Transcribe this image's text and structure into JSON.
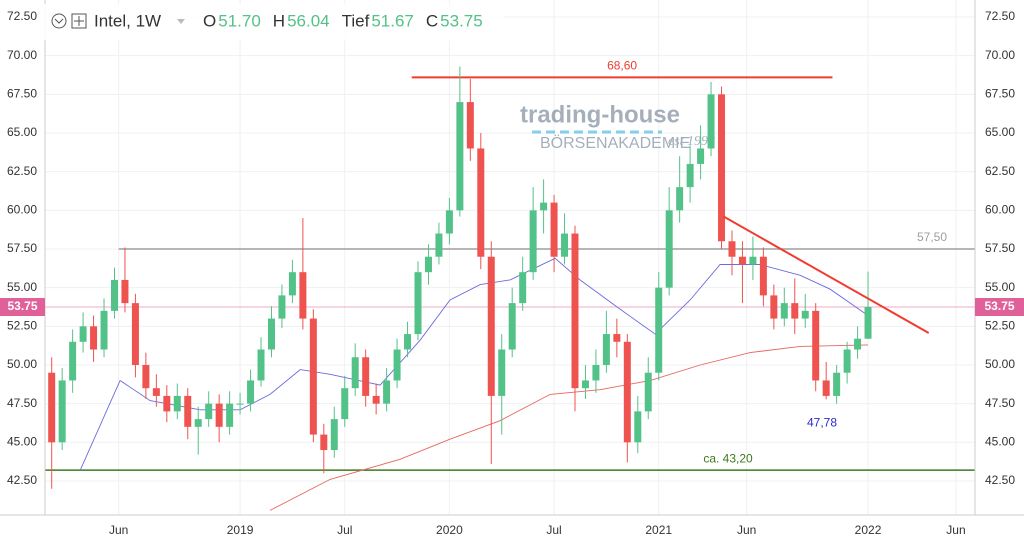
{
  "chart_data": {
    "type": "candlestick",
    "header": {
      "symbol": "Intel, 1W",
      "ohlc": [
        {
          "key": "O",
          "value": "51.70"
        },
        {
          "key": "H",
          "value": "56.04"
        },
        {
          "key": "Tief",
          "value": "51.67"
        },
        {
          "key": "C",
          "value": "53.75"
        }
      ]
    },
    "watermark": {
      "name": "trading-house",
      "sub": "BÖRSENAKADEMIE",
      "est": "est 1998"
    },
    "xlim": [
      2018.068,
      2022.511
    ],
    "xticks": [
      {
        "value": 2018.42,
        "label": "Jun"
      },
      2019,
      {
        "value": 2019.5,
        "label": "Jul"
      },
      2020,
      {
        "value": 2020.5,
        "label": "Jul"
      },
      2021,
      {
        "value": 2021.42,
        "label": "Jun"
      },
      2022,
      {
        "value": 2022.42,
        "label": "Jun"
      }
    ],
    "ylim": [
      40.3,
      73.6
    ],
    "yticks": [
      {
        "value": 42.5,
        "label": "42.50"
      },
      {
        "value": 45,
        "label": "45.00"
      },
      {
        "value": 47.5,
        "label": "47.50"
      },
      {
        "value": 50,
        "label": "50.00"
      },
      {
        "value": 52.5,
        "label": "52.50"
      },
      {
        "value": 55,
        "label": "55.00"
      },
      {
        "value": 57.5,
        "label": "57.50"
      },
      {
        "value": 60,
        "label": "60.00"
      },
      {
        "value": 62.5,
        "label": "62.50"
      },
      {
        "value": 65,
        "label": "65.00"
      },
      {
        "value": 67.5,
        "label": "67.50"
      },
      {
        "value": 70,
        "label": "70.00"
      },
      {
        "value": 72.5,
        "label": "72.50"
      }
    ],
    "grid": true,
    "up_color": "#53c288",
    "down_color": "#ef5350",
    "x": [
      2018.1,
      2018.15,
      2018.2,
      2018.25,
      2018.3,
      2018.35,
      2018.4,
      2018.45,
      2018.5,
      2018.55,
      2018.6,
      2018.65,
      2018.7,
      2018.75,
      2018.8,
      2018.85,
      2018.9,
      2018.95,
      2019.0,
      2019.05,
      2019.1,
      2019.15,
      2019.2,
      2019.25,
      2019.3,
      2019.35,
      2019.4,
      2019.45,
      2019.5,
      2019.55,
      2019.6,
      2019.65,
      2019.7,
      2019.75,
      2019.8,
      2019.85,
      2019.9,
      2019.95,
      2020.0,
      2020.05,
      2020.1,
      2020.15,
      2020.2,
      2020.25,
      2020.3,
      2020.35,
      2020.4,
      2020.45,
      2020.5,
      2020.55,
      2020.6,
      2020.65,
      2020.7,
      2020.75,
      2020.8,
      2020.85,
      2020.9,
      2020.95,
      2021.0,
      2021.05,
      2021.1,
      2021.15,
      2021.2,
      2021.25,
      2021.3,
      2021.35,
      2021.4,
      2021.45,
      2021.5,
      2021.55,
      2021.6,
      2021.65,
      2021.7,
      2021.75,
      2021.8,
      2021.85,
      2021.9,
      2021.95,
      2022.0
    ],
    "open": [
      49.5,
      45.0,
      49.0,
      51.5,
      52.5,
      51.0,
      53.5,
      55.5,
      54.0,
      50.0,
      48.5,
      48.0,
      47.0,
      48.0,
      46.0,
      46.5,
      47.5,
      46.0,
      47.5,
      47.5,
      49.0,
      51.0,
      53.0,
      54.5,
      56.0,
      53.0,
      45.5,
      44.5,
      46.5,
      48.5,
      50.5,
      48.0,
      47.5,
      49.0,
      51.0,
      52.0,
      56.0,
      57.0,
      58.5,
      60.0,
      67.0,
      64.0,
      57.0,
      48.0,
      51.0,
      54.0,
      56.0,
      60.0,
      60.5,
      57.0,
      58.5,
      48.5,
      49.0,
      50.0,
      52.0,
      51.5,
      45.0,
      47.0,
      49.5,
      55.0,
      60.0,
      61.5,
      63.0,
      64.0,
      67.5,
      58.0,
      57.0,
      56.5,
      57.0,
      54.5,
      53.0,
      54.0,
      53.0,
      53.5,
      49.0,
      48.0,
      49.5,
      51.0,
      51.7
    ],
    "high": [
      50.5,
      49.8,
      52.3,
      53.4,
      53.2,
      54.3,
      56.3,
      57.6,
      54.6,
      50.8,
      49.4,
      48.7,
      48.8,
      48.5,
      47.3,
      48.3,
      48.1,
      48.3,
      48.2,
      49.7,
      51.8,
      53.8,
      55.2,
      56.8,
      59.5,
      53.6,
      46.2,
      47.3,
      49.3,
      51.4,
      51.0,
      48.8,
      49.8,
      51.7,
      52.8,
      56.7,
      57.8,
      59.2,
      60.8,
      69.3,
      68.5,
      65.0,
      58.0,
      52.0,
      55.0,
      57.0,
      61.5,
      62.0,
      61.0,
      59.8,
      59.0,
      50.0,
      51.0,
      53.5,
      53.0,
      52.0,
      48.0,
      50.5,
      56.0,
      61.5,
      63.5,
      64.2,
      65.5,
      68.3,
      68.0,
      58.7,
      58.0,
      58.3,
      57.6,
      55.2,
      55.0,
      55.6,
      54.6,
      54.0,
      50.2,
      50.0,
      51.5,
      52.5,
      56.04
    ],
    "low": [
      42.0,
      44.5,
      48.2,
      50.8,
      50.2,
      50.5,
      53.0,
      53.4,
      49.2,
      47.8,
      47.3,
      46.3,
      46.5,
      45.2,
      44.2,
      46.0,
      45.0,
      45.5,
      46.8,
      47.0,
      48.6,
      50.5,
      52.4,
      54.0,
      52.3,
      45.0,
      43.0,
      44.0,
      46.0,
      48.0,
      47.3,
      46.8,
      47.0,
      48.5,
      50.5,
      51.6,
      55.2,
      56.5,
      57.8,
      59.6,
      63.2,
      56.2,
      43.6,
      45.5,
      50.5,
      53.5,
      55.5,
      58.5,
      56.0,
      56.5,
      47.0,
      47.8,
      48.2,
      49.5,
      50.5,
      43.7,
      44.3,
      46.5,
      49.0,
      54.5,
      59.2,
      60.5,
      62.0,
      63.5,
      57.5,
      55.8,
      54.0,
      55.5,
      53.8,
      52.3,
      52.5,
      52.0,
      52.4,
      48.3,
      47.78,
      47.5,
      48.8,
      50.4,
      51.67
    ],
    "close": [
      45.0,
      49.0,
      51.5,
      52.5,
      51.0,
      53.5,
      55.5,
      54.0,
      50.0,
      48.5,
      48.0,
      47.0,
      48.0,
      46.0,
      46.5,
      47.5,
      46.0,
      47.5,
      47.5,
      49.0,
      51.0,
      53.0,
      54.5,
      56.0,
      53.0,
      45.5,
      44.5,
      46.5,
      48.5,
      50.5,
      48.0,
      47.5,
      49.0,
      51.0,
      52.0,
      56.0,
      57.0,
      58.5,
      60.0,
      67.0,
      64.0,
      57.0,
      48.0,
      51.0,
      54.0,
      56.0,
      60.0,
      60.5,
      57.0,
      58.5,
      48.5,
      49.0,
      50.0,
      52.0,
      51.5,
      45.0,
      47.0,
      49.5,
      55.0,
      60.0,
      61.5,
      63.0,
      64.0,
      67.5,
      58.0,
      57.0,
      56.5,
      57.0,
      54.5,
      53.0,
      54.0,
      53.0,
      53.5,
      49.0,
      48.0,
      49.5,
      51.0,
      51.7,
      53.75
    ],
    "lines": [
      {
        "color": "#6b6bdc",
        "x": [
          2018.236,
          2018.427,
          2018.57,
          2018.809,
          2019.0,
          2019.143,
          2019.287,
          2019.43,
          2019.669,
          2019.86,
          2020.003,
          2020.147,
          2020.29,
          2020.505,
          2020.624,
          2020.816,
          2020.983,
          2021.15,
          2021.293,
          2021.484,
          2021.676,
          2021.819,
          2022.0
        ],
        "values": [
          43.2,
          49.0,
          47.7,
          47.1,
          47.1,
          48.1,
          49.7,
          49.4,
          48.7,
          51.6,
          54.2,
          55.2,
          55.5,
          56.9,
          55.5,
          53.6,
          52.0,
          54.2,
          56.5,
          56.5,
          55.8,
          54.9,
          53.2
        ]
      },
      {
        "color": "#e8665f",
        "x": [
          2019.143,
          2019.43,
          2019.764,
          2020.003,
          2020.242,
          2020.481,
          2020.72,
          2020.959,
          2021.198,
          2021.437,
          2021.676,
          2022.0
        ],
        "values": [
          40.6,
          42.6,
          43.9,
          45.2,
          46.4,
          48.1,
          48.4,
          49.0,
          50.0,
          50.8,
          51.2,
          51.3
        ]
      }
    ],
    "levels": [
      {
        "value": 68.6,
        "label": "68,60",
        "from": 2019.82,
        "to": 2021.83,
        "color": "#f23b2f"
      },
      {
        "value": 57.5,
        "label": "57,50",
        "from": 2018.42,
        "to": 2022.511,
        "color": "#9e9e9e"
      },
      {
        "value": 43.2,
        "label": "ca. 43,20",
        "from": 2018.068,
        "to": 2022.511,
        "color": "#3c7a1e"
      }
    ],
    "trendline": {
      "color": "#f23b2f",
      "x": [
        2021.31,
        2022.29
      ],
      "values": [
        59.6,
        52.07
      ]
    },
    "low_note": {
      "value": 47.78,
      "label": "47,78",
      "x": 2021.78,
      "color": "#2a2ad0"
    },
    "last_price": {
      "value": 53.75,
      "label": "53.75",
      "color": "#e0609a"
    }
  }
}
